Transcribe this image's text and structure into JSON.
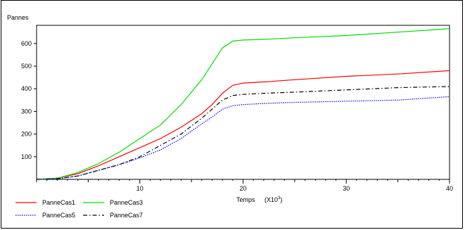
{
  "chart_data": {
    "type": "line",
    "ylabel": "Pannes",
    "xlabel": "Temps",
    "xlabel_multiplier": "(X10",
    "xlabel_exponent": "3",
    "xlabel_close": ")",
    "xlim": [
      0,
      40
    ],
    "ylim": [
      0,
      680
    ],
    "x_ticks": [
      10,
      20,
      30,
      40
    ],
    "y_ticks": [
      100,
      200,
      300,
      400,
      500,
      600
    ],
    "grid": false,
    "legend_position": "bottom-left",
    "series": [
      {
        "name": "PanneCas1",
        "color": "#ff0000",
        "dash": "solid",
        "points": [
          [
            0,
            0
          ],
          [
            2,
            5
          ],
          [
            4,
            25
          ],
          [
            6,
            60
          ],
          [
            8,
            100
          ],
          [
            10,
            140
          ],
          [
            12,
            180
          ],
          [
            14,
            230
          ],
          [
            16,
            290
          ],
          [
            17,
            330
          ],
          [
            18,
            380
          ],
          [
            19,
            415
          ],
          [
            20,
            425
          ],
          [
            22,
            430
          ],
          [
            25,
            440
          ],
          [
            30,
            455
          ],
          [
            35,
            465
          ],
          [
            40,
            480
          ]
        ]
      },
      {
        "name": "PanneCas3",
        "color": "#00dd00",
        "dash": "solid",
        "points": [
          [
            0,
            0
          ],
          [
            2,
            5
          ],
          [
            4,
            30
          ],
          [
            6,
            70
          ],
          [
            8,
            120
          ],
          [
            10,
            180
          ],
          [
            12,
            240
          ],
          [
            14,
            330
          ],
          [
            16,
            440
          ],
          [
            17,
            510
          ],
          [
            18,
            580
          ],
          [
            19,
            610
          ],
          [
            20,
            615
          ],
          [
            22,
            618
          ],
          [
            25,
            625
          ],
          [
            30,
            635
          ],
          [
            35,
            650
          ],
          [
            40,
            665
          ]
        ]
      },
      {
        "name": "PanneCas5",
        "color": "#0000ff",
        "dash": "dotted",
        "points": [
          [
            0,
            0
          ],
          [
            2,
            2
          ],
          [
            4,
            15
          ],
          [
            6,
            40
          ],
          [
            8,
            65
          ],
          [
            10,
            95
          ],
          [
            12,
            130
          ],
          [
            14,
            180
          ],
          [
            16,
            245
          ],
          [
            17,
            275
          ],
          [
            18,
            310
          ],
          [
            19,
            325
          ],
          [
            20,
            330
          ],
          [
            22,
            335
          ],
          [
            25,
            340
          ],
          [
            30,
            345
          ],
          [
            35,
            350
          ],
          [
            40,
            365
          ]
        ]
      },
      {
        "name": "PanneCas7",
        "color": "#000000",
        "dash": "dashdot",
        "points": [
          [
            0,
            0
          ],
          [
            2,
            3
          ],
          [
            4,
            15
          ],
          [
            6,
            40
          ],
          [
            8,
            65
          ],
          [
            10,
            100
          ],
          [
            12,
            150
          ],
          [
            14,
            200
          ],
          [
            16,
            270
          ],
          [
            17,
            310
          ],
          [
            18,
            350
          ],
          [
            19,
            370
          ],
          [
            20,
            375
          ],
          [
            22,
            380
          ],
          [
            25,
            385
          ],
          [
            30,
            395
          ],
          [
            35,
            405
          ],
          [
            40,
            410
          ]
        ]
      }
    ]
  }
}
